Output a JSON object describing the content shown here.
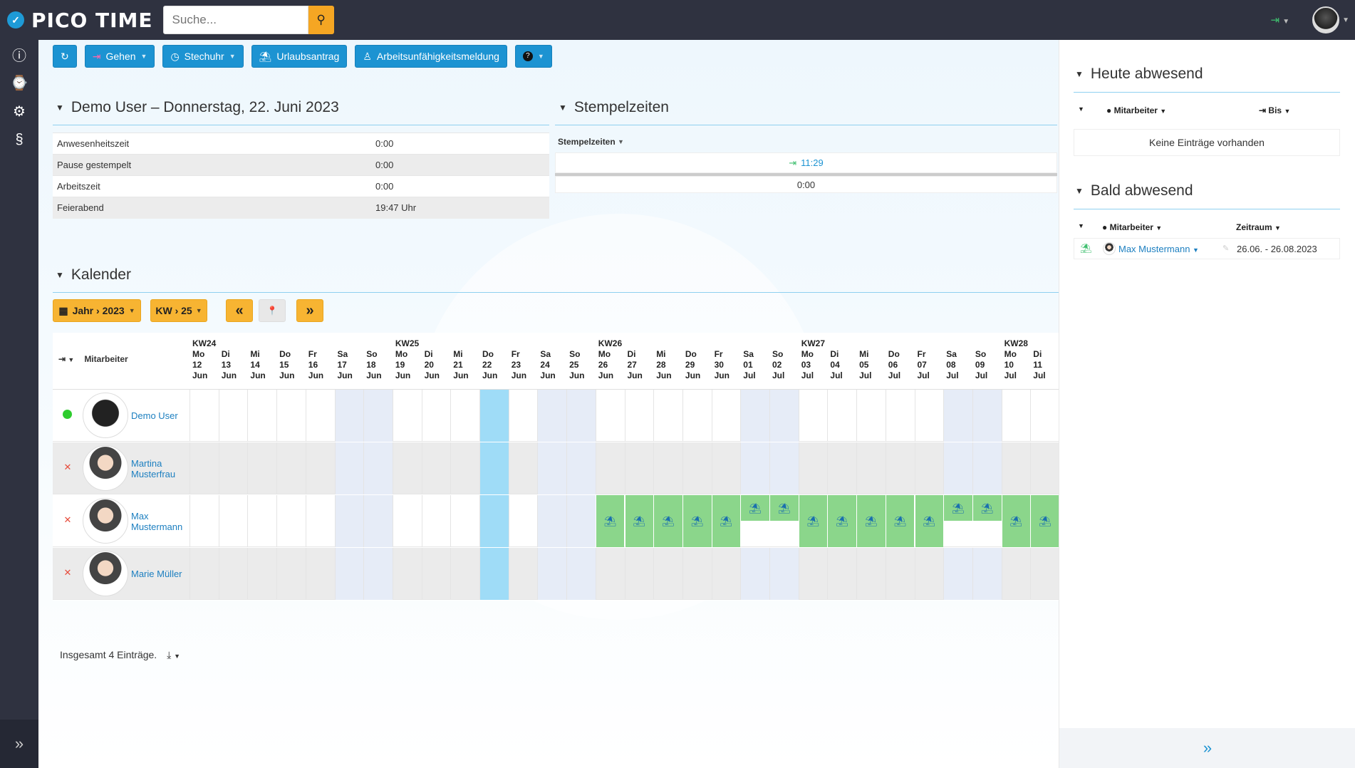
{
  "app": {
    "logo_mark": "✓",
    "logo_text": "PICO TIME"
  },
  "search": {
    "placeholder": "Suche..."
  },
  "toolbar": {
    "refresh_icon": "↻",
    "gehen_label": "Gehen",
    "stechuhr_label": "Stechuhr",
    "urlaub_label": "Urlaubsantrag",
    "au_label": "Arbeitsunfähigkeitsmeldung",
    "help_icon": "?"
  },
  "summary": {
    "title": "Demo User – Donnerstag, 22. Juni 2023",
    "rows": [
      {
        "label": "Anwesenheitszeit",
        "value": "0:00"
      },
      {
        "label": "Pause gestempelt",
        "value": "0:00"
      },
      {
        "label": "Arbeitszeit",
        "value": "0:00"
      },
      {
        "label": "Feierabend",
        "value": "19:47 Uhr"
      }
    ]
  },
  "stamps": {
    "title": "Stempelzeiten",
    "column": "Stempelzeiten",
    "entry": "11:29",
    "total": "0:00"
  },
  "calendar": {
    "title": "Kalender",
    "year_btn": "Jahr › 2023",
    "week_btn": "KW › 25",
    "prev_icon": "«",
    "pin_icon": "📍",
    "next_icon": "»",
    "employee_col": "Mitarbeiter",
    "footer": "Insgesamt 4 Einträge.",
    "days": [
      {
        "kw": "KW24",
        "d": "Mo",
        "n": "12",
        "m": "Jun"
      },
      {
        "kw": "",
        "d": "Di",
        "n": "13",
        "m": "Jun"
      },
      {
        "kw": "",
        "d": "Mi",
        "n": "14",
        "m": "Jun"
      },
      {
        "kw": "",
        "d": "Do",
        "n": "15",
        "m": "Jun"
      },
      {
        "kw": "",
        "d": "Fr",
        "n": "16",
        "m": "Jun"
      },
      {
        "kw": "",
        "d": "Sa",
        "n": "17",
        "m": "Jun"
      },
      {
        "kw": "",
        "d": "So",
        "n": "18",
        "m": "Jun"
      },
      {
        "kw": "KW25",
        "d": "Mo",
        "n": "19",
        "m": "Jun"
      },
      {
        "kw": "",
        "d": "Di",
        "n": "20",
        "m": "Jun"
      },
      {
        "kw": "",
        "d": "Mi",
        "n": "21",
        "m": "Jun"
      },
      {
        "kw": "",
        "d": "Do",
        "n": "22",
        "m": "Jun"
      },
      {
        "kw": "",
        "d": "Fr",
        "n": "23",
        "m": "Jun"
      },
      {
        "kw": "",
        "d": "Sa",
        "n": "24",
        "m": "Jun"
      },
      {
        "kw": "",
        "d": "So",
        "n": "25",
        "m": "Jun"
      },
      {
        "kw": "KW26",
        "d": "Mo",
        "n": "26",
        "m": "Jun"
      },
      {
        "kw": "",
        "d": "Di",
        "n": "27",
        "m": "Jun"
      },
      {
        "kw": "",
        "d": "Mi",
        "n": "28",
        "m": "Jun"
      },
      {
        "kw": "",
        "d": "Do",
        "n": "29",
        "m": "Jun"
      },
      {
        "kw": "",
        "d": "Fr",
        "n": "30",
        "m": "Jun"
      },
      {
        "kw": "",
        "d": "Sa",
        "n": "01",
        "m": "Jul"
      },
      {
        "kw": "",
        "d": "So",
        "n": "02",
        "m": "Jul"
      },
      {
        "kw": "KW27",
        "d": "Mo",
        "n": "03",
        "m": "Jul"
      },
      {
        "kw": "",
        "d": "Di",
        "n": "04",
        "m": "Jul"
      },
      {
        "kw": "",
        "d": "Mi",
        "n": "05",
        "m": "Jul"
      },
      {
        "kw": "",
        "d": "Do",
        "n": "06",
        "m": "Jul"
      },
      {
        "kw": "",
        "d": "Fr",
        "n": "07",
        "m": "Jul"
      },
      {
        "kw": "",
        "d": "Sa",
        "n": "08",
        "m": "Jul"
      },
      {
        "kw": "",
        "d": "So",
        "n": "09",
        "m": "Jul"
      },
      {
        "kw": "KW28",
        "d": "Mo",
        "n": "10",
        "m": "Jul"
      },
      {
        "kw": "",
        "d": "Di",
        "n": "11",
        "m": "Jul"
      }
    ],
    "employees": [
      {
        "name": "Demo User",
        "status": "present",
        "absent_days": []
      },
      {
        "name": "Martina Musterfrau",
        "status": "absent",
        "absent_days": []
      },
      {
        "name": "Max Mustermann",
        "status": "absent",
        "absent_days": [
          14,
          15,
          16,
          17,
          18,
          19,
          20,
          21,
          22,
          23,
          24,
          25,
          26,
          27,
          28,
          29
        ]
      },
      {
        "name": "Marie Müller",
        "status": "absent",
        "absent_days": []
      }
    ],
    "colors": {
      "weekend": "#e6ecf7",
      "today": "#9fdcf7",
      "absence": "#8bd68b"
    }
  },
  "right": {
    "today_title": "Heute abwesend",
    "today_col_emp": "Mitarbeiter",
    "today_col_until": "Bis",
    "today_empty": "Keine Einträge vorhanden",
    "soon_title": "Bald abwesend",
    "soon_col_emp": "Mitarbeiter",
    "soon_col_range": "Zeitraum",
    "soon_name": "Max Mustermann",
    "soon_range": "26.06. - 26.08.2023"
  }
}
